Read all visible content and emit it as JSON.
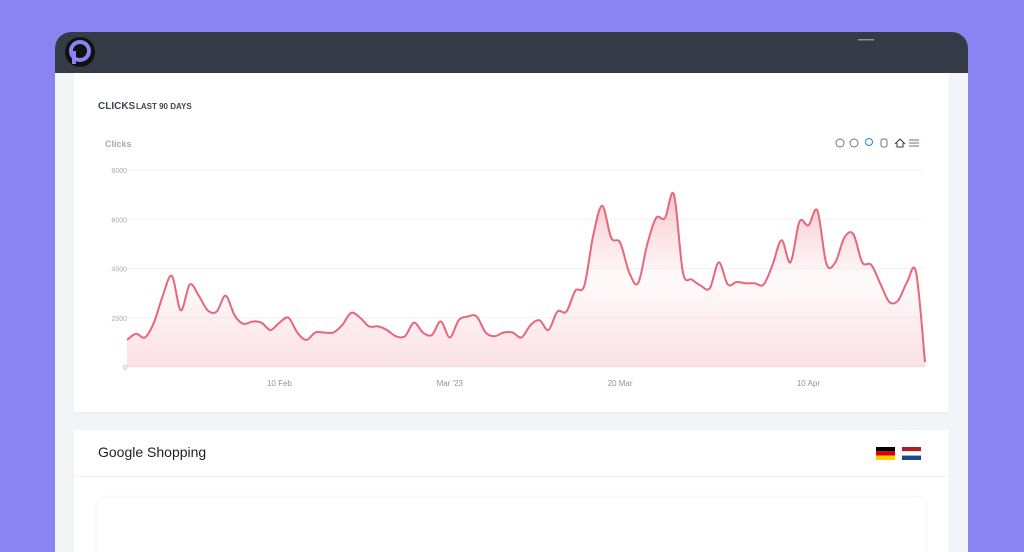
{
  "card_title": "CLICKS",
  "card_subtitle": "LAST 90 DAYS",
  "section_title": "Google Shopping",
  "chart_data": {
    "type": "area",
    "y_label": "Clicks",
    "color": "#e8667b",
    "categories": [
      null,
      null,
      null,
      null,
      null,
      null,
      null,
      null,
      null,
      null,
      null,
      null,
      null,
      null,
      null,
      null,
      null,
      "10 Feb",
      null,
      null,
      null,
      null,
      null,
      null,
      null,
      null,
      null,
      null,
      null,
      null,
      null,
      null,
      null,
      null,
      null,
      null,
      "Mar '23",
      null,
      null,
      null,
      null,
      null,
      null,
      null,
      null,
      null,
      null,
      null,
      null,
      null,
      null,
      null,
      null,
      null,
      null,
      "20 Mar",
      null,
      null,
      null,
      null,
      null,
      null,
      null,
      null,
      null,
      null,
      null,
      null,
      null,
      null,
      null,
      null,
      null,
      null,
      null,
      null,
      "10 Apr",
      null,
      null,
      null,
      null,
      null,
      null,
      null,
      null,
      null,
      null,
      null,
      null,
      null
    ],
    "values": [
      1100,
      1350,
      1200,
      1800,
      2900,
      3700,
      2300,
      3350,
      2900,
      2300,
      2250,
      2900,
      2100,
      1750,
      1850,
      1800,
      1500,
      1800,
      2000,
      1400,
      1100,
      1400,
      1400,
      1400,
      1700,
      2200,
      2000,
      1650,
      1650,
      1500,
      1250,
      1250,
      1800,
      1400,
      1300,
      1850,
      1200,
      1900,
      2050,
      2050,
      1400,
      1250,
      1400,
      1400,
      1200,
      1700,
      1900,
      1500,
      2250,
      2250,
      3100,
      3300,
      5350,
      6550,
      5250,
      5050,
      3850,
      3400,
      4950,
      6050,
      6050,
      7000,
      3850,
      3550,
      3300,
      3200,
      4250,
      3350,
      3450,
      3400,
      3400,
      3350,
      4150,
      5150,
      4250,
      5900,
      5750,
      6350,
      4200,
      4250,
      5250,
      5400,
      4250,
      4150,
      3400,
      2650,
      2700,
      3450,
      3850,
      200
    ],
    "ylim": [
      0,
      8000
    ],
    "yticks": [
      0,
      2000,
      4000,
      6000,
      8000
    ],
    "grid": true
  }
}
